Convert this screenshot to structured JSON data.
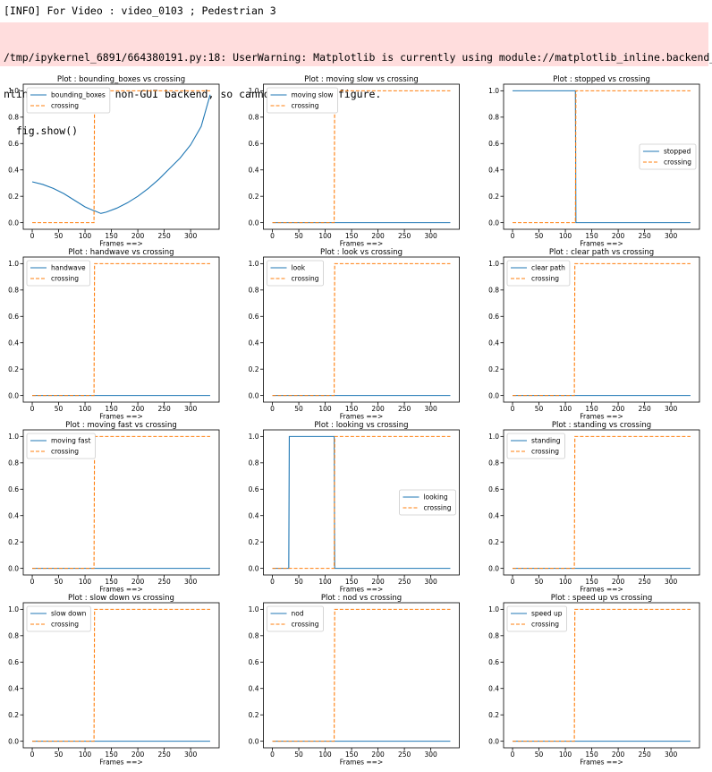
{
  "header": {
    "info": "[INFO] For Video : video_0103 ; Pedestrian 3",
    "warning": [
      "/tmp/ipykernel_6891/664380191.py:18: UserWarning: Matplotlib is currently using module://matplotlib_inline.backend_i",
      "nline, which is a non-GUI backend, so cannot show the figure.",
      "  fig.show()"
    ]
  },
  "chart_data": [
    {
      "type": "line",
      "title": "Plot : bounding_boxes vs crossing",
      "x_label": "Frames ==>",
      "legend_loc": "upper left",
      "x": [
        0,
        20,
        40,
        60,
        80,
        100,
        117,
        118,
        130,
        140,
        160,
        180,
        200,
        220,
        240,
        260,
        280,
        300,
        320,
        337
      ],
      "xlim": [
        -17,
        354
      ],
      "xticks": [
        0,
        50,
        100,
        150,
        200,
        250,
        300
      ],
      "ylim": [
        -0.05,
        1.05
      ],
      "yticks": [
        {
          "value": 0,
          "label": "0.0"
        },
        0.2,
        0.4,
        0.6,
        0.8,
        {
          "value": 1,
          "label": "1.0"
        }
      ],
      "series": [
        {
          "name": "bounding_boxes",
          "color": "#1f77b4",
          "linestyle": "solid",
          "values": [
            0.31,
            0.29,
            0.26,
            0.22,
            0.17,
            0.12,
            0.09,
            0.09,
            0.07,
            0.08,
            0.11,
            0.15,
            0.2,
            0.26,
            0.33,
            0.41,
            0.49,
            0.59,
            0.73,
            0.97
          ]
        },
        {
          "name": "crossing",
          "color": "#ff7f0e",
          "linestyle": "dashed",
          "values": [
            0,
            0,
            0,
            0,
            0,
            0,
            0,
            1,
            1,
            1,
            1,
            1,
            1,
            1,
            1,
            1,
            1,
            1,
            1,
            1
          ]
        }
      ]
    },
    {
      "type": "line",
      "title": "Plot : moving slow vs crossing",
      "x_label": "Frames ==>",
      "legend_loc": "upper left",
      "x": [
        0,
        117,
        118,
        337
      ],
      "xlim": [
        -17,
        354
      ],
      "xticks": [
        0,
        50,
        100,
        150,
        200,
        250,
        300
      ],
      "ylim": [
        -0.05,
        1.05
      ],
      "yticks": [
        {
          "value": 0,
          "label": "0.0"
        },
        0.2,
        0.4,
        0.6,
        0.8,
        {
          "value": 1,
          "label": "1.0"
        }
      ],
      "series": [
        {
          "name": "moving slow",
          "color": "#1f77b4",
          "linestyle": "solid",
          "values": [
            0,
            0,
            0,
            0
          ]
        },
        {
          "name": "crossing",
          "color": "#ff7f0e",
          "linestyle": "dashed",
          "values": [
            0,
            0,
            1,
            1
          ]
        }
      ]
    },
    {
      "type": "line",
      "title": "Plot : stopped vs crossing",
      "x_label": "Frames ==>",
      "legend_loc": "center right",
      "x": [
        0,
        119,
        120,
        337
      ],
      "xlim": [
        -17,
        354
      ],
      "xticks": [
        0,
        50,
        100,
        150,
        200,
        250,
        300
      ],
      "ylim": [
        -0.05,
        1.05
      ],
      "yticks": [
        {
          "value": 0,
          "label": "0.0"
        },
        0.2,
        0.4,
        0.6,
        0.8,
        {
          "value": 1,
          "label": "1.0"
        }
      ],
      "series": [
        {
          "name": "stopped",
          "color": "#1f77b4",
          "linestyle": "solid",
          "values": [
            1,
            1,
            0,
            0
          ]
        },
        {
          "name": "crossing",
          "color": "#ff7f0e",
          "linestyle": "dashed",
          "values": [
            0,
            0,
            1,
            1
          ]
        }
      ]
    },
    {
      "type": "line",
      "title": "Plot : handwave vs crossing",
      "x_label": "Frames ==>",
      "legend_loc": "upper left",
      "x": [
        0,
        117,
        118,
        337
      ],
      "xlim": [
        -17,
        354
      ],
      "xticks": [
        0,
        50,
        100,
        150,
        200,
        250,
        300
      ],
      "ylim": [
        -0.05,
        1.05
      ],
      "yticks": [
        {
          "value": 0,
          "label": "0.0"
        },
        0.2,
        0.4,
        0.6,
        0.8,
        {
          "value": 1,
          "label": "1.0"
        }
      ],
      "series": [
        {
          "name": "handwave",
          "color": "#1f77b4",
          "linestyle": "solid",
          "values": [
            0,
            0,
            0,
            0
          ]
        },
        {
          "name": "crossing",
          "color": "#ff7f0e",
          "linestyle": "dashed",
          "values": [
            0,
            0,
            1,
            1
          ]
        }
      ]
    },
    {
      "type": "line",
      "title": "Plot : look vs crossing",
      "x_label": "Frames ==>",
      "legend_loc": "upper left",
      "x": [
        0,
        117,
        118,
        337
      ],
      "xlim": [
        -17,
        354
      ],
      "xticks": [
        0,
        50,
        100,
        150,
        200,
        250,
        300
      ],
      "ylim": [
        -0.05,
        1.05
      ],
      "yticks": [
        {
          "value": 0,
          "label": "0.0"
        },
        0.2,
        0.4,
        0.6,
        0.8,
        {
          "value": 1,
          "label": "1.0"
        }
      ],
      "series": [
        {
          "name": "look",
          "color": "#1f77b4",
          "linestyle": "solid",
          "values": [
            0,
            0,
            0,
            0
          ]
        },
        {
          "name": "crossing",
          "color": "#ff7f0e",
          "linestyle": "dashed",
          "values": [
            0,
            0,
            1,
            1
          ]
        }
      ]
    },
    {
      "type": "line",
      "title": "Plot : clear path vs crossing",
      "x_label": "Frames ==>",
      "legend_loc": "upper left",
      "x": [
        0,
        117,
        118,
        337
      ],
      "xlim": [
        -17,
        354
      ],
      "xticks": [
        0,
        50,
        100,
        150,
        200,
        250,
        300
      ],
      "ylim": [
        -0.05,
        1.05
      ],
      "yticks": [
        {
          "value": 0,
          "label": "0.0"
        },
        0.2,
        0.4,
        0.6,
        0.8,
        {
          "value": 1,
          "label": "1.0"
        }
      ],
      "series": [
        {
          "name": "clear path",
          "color": "#1f77b4",
          "linestyle": "solid",
          "values": [
            0,
            0,
            0,
            0
          ]
        },
        {
          "name": "crossing",
          "color": "#ff7f0e",
          "linestyle": "dashed",
          "values": [
            0,
            0,
            1,
            1
          ]
        }
      ]
    },
    {
      "type": "line",
      "title": "Plot : moving fast vs crossing",
      "x_label": "Frames ==>",
      "legend_loc": "upper left",
      "x": [
        0,
        117,
        118,
        337
      ],
      "xlim": [
        -17,
        354
      ],
      "xticks": [
        0,
        50,
        100,
        150,
        200,
        250,
        300
      ],
      "ylim": [
        -0.05,
        1.05
      ],
      "yticks": [
        {
          "value": 0,
          "label": "0.0"
        },
        0.2,
        0.4,
        0.6,
        0.8,
        {
          "value": 1,
          "label": "1.0"
        }
      ],
      "series": [
        {
          "name": "moving fast",
          "color": "#1f77b4",
          "linestyle": "solid",
          "values": [
            0,
            0,
            0,
            0
          ]
        },
        {
          "name": "crossing",
          "color": "#ff7f0e",
          "linestyle": "dashed",
          "values": [
            0,
            0,
            1,
            1
          ]
        }
      ]
    },
    {
      "type": "line",
      "title": "Plot : looking vs crossing",
      "x_label": "Frames ==>",
      "legend_loc": "center right",
      "x": [
        0,
        31,
        32,
        117,
        118,
        337
      ],
      "xlim": [
        -17,
        354
      ],
      "xticks": [
        0,
        50,
        100,
        150,
        200,
        250,
        300
      ],
      "ylim": [
        -0.05,
        1.05
      ],
      "yticks": [
        {
          "value": 0,
          "label": "0.0"
        },
        0.2,
        0.4,
        0.6,
        0.8,
        {
          "value": 1,
          "label": "1.0"
        }
      ],
      "series": [
        {
          "name": "looking",
          "color": "#1f77b4",
          "linestyle": "solid",
          "values": [
            0,
            0,
            1,
            1,
            0,
            0
          ]
        },
        {
          "name": "crossing",
          "color": "#ff7f0e",
          "linestyle": "dashed",
          "values": [
            0,
            0,
            0,
            0,
            1,
            1
          ]
        }
      ]
    },
    {
      "type": "line",
      "title": "Plot : standing vs crossing",
      "x_label": "Frames ==>",
      "legend_loc": "upper left",
      "x": [
        0,
        117,
        118,
        337
      ],
      "xlim": [
        -17,
        354
      ],
      "xticks": [
        0,
        50,
        100,
        150,
        200,
        250,
        300
      ],
      "ylim": [
        -0.05,
        1.05
      ],
      "yticks": [
        {
          "value": 0,
          "label": "0.0"
        },
        0.2,
        0.4,
        0.6,
        0.8,
        {
          "value": 1,
          "label": "1.0"
        }
      ],
      "series": [
        {
          "name": "standing",
          "color": "#1f77b4",
          "linestyle": "solid",
          "values": [
            0,
            0,
            0,
            0
          ]
        },
        {
          "name": "crossing",
          "color": "#ff7f0e",
          "linestyle": "dashed",
          "values": [
            0,
            0,
            1,
            1
          ]
        }
      ]
    },
    {
      "type": "line",
      "title": "Plot : slow down vs crossing",
      "x_label": "Frames ==>",
      "legend_loc": "upper left",
      "x": [
        0,
        117,
        118,
        337
      ],
      "xlim": [
        -17,
        354
      ],
      "xticks": [
        0,
        50,
        100,
        150,
        200,
        250,
        300
      ],
      "ylim": [
        -0.05,
        1.05
      ],
      "yticks": [
        {
          "value": 0,
          "label": "0.0"
        },
        0.2,
        0.4,
        0.6,
        0.8,
        {
          "value": 1,
          "label": "1.0"
        }
      ],
      "series": [
        {
          "name": "slow down",
          "color": "#1f77b4",
          "linestyle": "solid",
          "values": [
            0,
            0,
            0,
            0
          ]
        },
        {
          "name": "crossing",
          "color": "#ff7f0e",
          "linestyle": "dashed",
          "values": [
            0,
            0,
            1,
            1
          ]
        }
      ]
    },
    {
      "type": "line",
      "title": "Plot : nod vs crossing",
      "x_label": "Frames ==>",
      "legend_loc": "upper left",
      "x": [
        0,
        117,
        118,
        337
      ],
      "xlim": [
        -17,
        354
      ],
      "xticks": [
        0,
        50,
        100,
        150,
        200,
        250,
        300
      ],
      "ylim": [
        -0.05,
        1.05
      ],
      "yticks": [
        {
          "value": 0,
          "label": "0.0"
        },
        0.2,
        0.4,
        0.6,
        0.8,
        {
          "value": 1,
          "label": "1.0"
        }
      ],
      "series": [
        {
          "name": "nod",
          "color": "#1f77b4",
          "linestyle": "solid",
          "values": [
            0,
            0,
            0,
            0
          ]
        },
        {
          "name": "crossing",
          "color": "#ff7f0e",
          "linestyle": "dashed",
          "values": [
            0,
            0,
            1,
            1
          ]
        }
      ]
    },
    {
      "type": "line",
      "title": "Plot : speed up vs crossing",
      "x_label": "Frames ==>",
      "legend_loc": "upper left",
      "x": [
        0,
        117,
        118,
        337
      ],
      "xlim": [
        -17,
        354
      ],
      "xticks": [
        0,
        50,
        100,
        150,
        200,
        250,
        300
      ],
      "ylim": [
        -0.05,
        1.05
      ],
      "yticks": [
        {
          "value": 0,
          "label": "0.0"
        },
        0.2,
        0.4,
        0.6,
        0.8,
        {
          "value": 1,
          "label": "1.0"
        }
      ],
      "series": [
        {
          "name": "speed up",
          "color": "#1f77b4",
          "linestyle": "solid",
          "values": [
            0,
            0,
            0,
            0
          ]
        },
        {
          "name": "crossing",
          "color": "#ff7f0e",
          "linestyle": "dashed",
          "values": [
            0,
            0,
            1,
            1
          ]
        }
      ]
    }
  ]
}
